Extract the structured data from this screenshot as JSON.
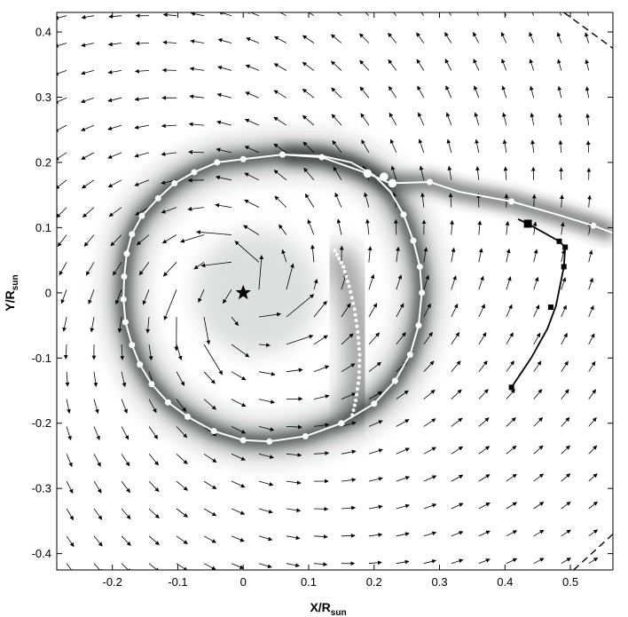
{
  "chart_data": {
    "type": "scatter",
    "title": "",
    "xlabel": "X/R",
    "xlabel_sub": "sun",
    "ylabel": "Y/R",
    "ylabel_sub": "sun",
    "xlim": [
      -0.285,
      0.565
    ],
    "ylim": [
      -0.425,
      0.43
    ],
    "xticks": [
      -0.2,
      -0.1,
      0,
      0.1,
      0.2,
      0.3,
      0.4,
      0.5
    ],
    "xtick_labels": [
      "-0.2",
      "-0.1",
      "0",
      "0.1",
      "0.2",
      "0.3",
      "0.4",
      "0.5"
    ],
    "yticks": [
      -0.4,
      -0.3,
      -0.2,
      -0.1,
      0,
      0.1,
      0.2,
      0.3,
      0.4
    ],
    "ytick_labels": [
      "-0.4",
      "-0.3",
      "-0.2",
      "-0.1",
      "0",
      "0.1",
      "0.2",
      "0.3",
      "0.4"
    ],
    "grid": false,
    "legend": "none",
    "colors": {
      "background": "#ffffff",
      "density_dark": "#2a3030",
      "arrow": "#000000",
      "white_orbit": "#ffffff",
      "black_track": "#000000"
    },
    "star_marker": {
      "x": 0.0,
      "y": 0.0
    },
    "white_orbit_points": [
      [
        0.0,
        0.205
      ],
      [
        -0.04,
        0.2
      ],
      [
        -0.075,
        0.185
      ],
      [
        -0.105,
        0.168
      ],
      [
        -0.13,
        0.145
      ],
      [
        -0.155,
        0.118
      ],
      [
        -0.17,
        0.09
      ],
      [
        -0.178,
        0.06
      ],
      [
        -0.182,
        0.025
      ],
      [
        -0.183,
        -0.01
      ],
      [
        -0.18,
        -0.045
      ],
      [
        -0.17,
        -0.08
      ],
      [
        -0.158,
        -0.11
      ],
      [
        -0.14,
        -0.14
      ],
      [
        -0.115,
        -0.168
      ],
      [
        -0.085,
        -0.19
      ],
      [
        -0.045,
        -0.212
      ],
      [
        0.0,
        -0.226
      ],
      [
        0.04,
        -0.228
      ],
      [
        0.095,
        -0.22
      ],
      [
        0.15,
        -0.2
      ],
      [
        0.2,
        -0.17
      ],
      [
        0.232,
        -0.135
      ],
      [
        0.255,
        -0.095
      ],
      [
        0.268,
        -0.05
      ],
      [
        0.273,
        0.0
      ],
      [
        0.27,
        0.04
      ],
      [
        0.26,
        0.08
      ],
      [
        0.245,
        0.12
      ],
      [
        0.225,
        0.155
      ],
      [
        0.2,
        0.18
      ],
      [
        0.165,
        0.2
      ],
      [
        0.12,
        0.21
      ],
      [
        0.06,
        0.212
      ]
    ],
    "white_orbit_markers": [
      [
        0.0,
        0.205
      ],
      [
        -0.04,
        0.2
      ],
      [
        -0.075,
        0.185
      ],
      [
        -0.105,
        0.168
      ],
      [
        -0.13,
        0.145
      ],
      [
        -0.155,
        0.118
      ],
      [
        -0.17,
        0.09
      ],
      [
        -0.178,
        0.06
      ],
      [
        -0.182,
        0.025
      ],
      [
        -0.183,
        -0.01
      ],
      [
        -0.18,
        -0.045
      ],
      [
        -0.17,
        -0.08
      ],
      [
        -0.158,
        -0.11
      ],
      [
        -0.14,
        -0.14
      ],
      [
        -0.115,
        -0.168
      ],
      [
        -0.085,
        -0.19
      ],
      [
        -0.045,
        -0.212
      ],
      [
        0.0,
        -0.226
      ],
      [
        0.04,
        -0.228
      ],
      [
        0.095,
        -0.22
      ],
      [
        0.15,
        -0.2
      ],
      [
        0.2,
        -0.17
      ],
      [
        0.232,
        -0.135
      ],
      [
        0.255,
        -0.095
      ],
      [
        0.268,
        -0.05
      ],
      [
        0.273,
        0.0
      ],
      [
        0.27,
        0.04
      ],
      [
        0.26,
        0.08
      ],
      [
        0.245,
        0.12
      ],
      [
        0.06,
        0.212
      ]
    ],
    "white_stream_points": [
      [
        0.06,
        0.212
      ],
      [
        0.12,
        0.208
      ],
      [
        0.19,
        0.183
      ],
      [
        0.225,
        0.168
      ],
      [
        0.285,
        0.17
      ],
      [
        0.33,
        0.155
      ],
      [
        0.41,
        0.14
      ],
      [
        0.48,
        0.12
      ],
      [
        0.535,
        0.103
      ],
      [
        0.565,
        0.092
      ]
    ],
    "white_stream_markers": [
      [
        0.12,
        0.208
      ],
      [
        0.19,
        0.183
      ],
      [
        0.215,
        0.178
      ],
      [
        0.228,
        0.168
      ],
      [
        0.285,
        0.17
      ],
      [
        0.41,
        0.14
      ],
      [
        0.535,
        0.103
      ]
    ],
    "white_dotted_points": [
      [
        0.14,
        0.065
      ],
      [
        0.153,
        0.04
      ],
      [
        0.162,
        0.01
      ],
      [
        0.17,
        -0.025
      ],
      [
        0.175,
        -0.06
      ],
      [
        0.178,
        -0.095
      ],
      [
        0.177,
        -0.13
      ],
      [
        0.172,
        -0.165
      ],
      [
        0.165,
        -0.195
      ]
    ],
    "black_track_points": [
      [
        0.41,
        -0.145
      ],
      [
        0.44,
        -0.1
      ],
      [
        0.465,
        -0.055
      ],
      [
        0.478,
        -0.02
      ],
      [
        0.49,
        0.04
      ],
      [
        0.492,
        0.07
      ],
      [
        0.483,
        0.079
      ],
      [
        0.435,
        0.106
      ],
      [
        0.42,
        0.113
      ]
    ],
    "black_track_markers": [
      [
        0.41,
        -0.145
      ],
      [
        0.47,
        -0.022
      ],
      [
        0.49,
        0.04
      ],
      [
        0.492,
        0.07
      ],
      [
        0.483,
        0.079
      ],
      [
        0.435,
        0.106
      ]
    ],
    "dashed_lines": [
      [
        [
          0.49,
          0.43
        ],
        [
          0.565,
          0.375
        ]
      ],
      [
        [
          0.505,
          -0.425
        ],
        [
          0.565,
          -0.37
        ]
      ]
    ],
    "velocity_field": {
      "x_grid": [
        -0.27,
        0.565,
        0.042
      ],
      "y_grid": [
        -0.415,
        0.43,
        0.042
      ],
      "center": [
        0.005,
        0.0
      ]
    }
  }
}
